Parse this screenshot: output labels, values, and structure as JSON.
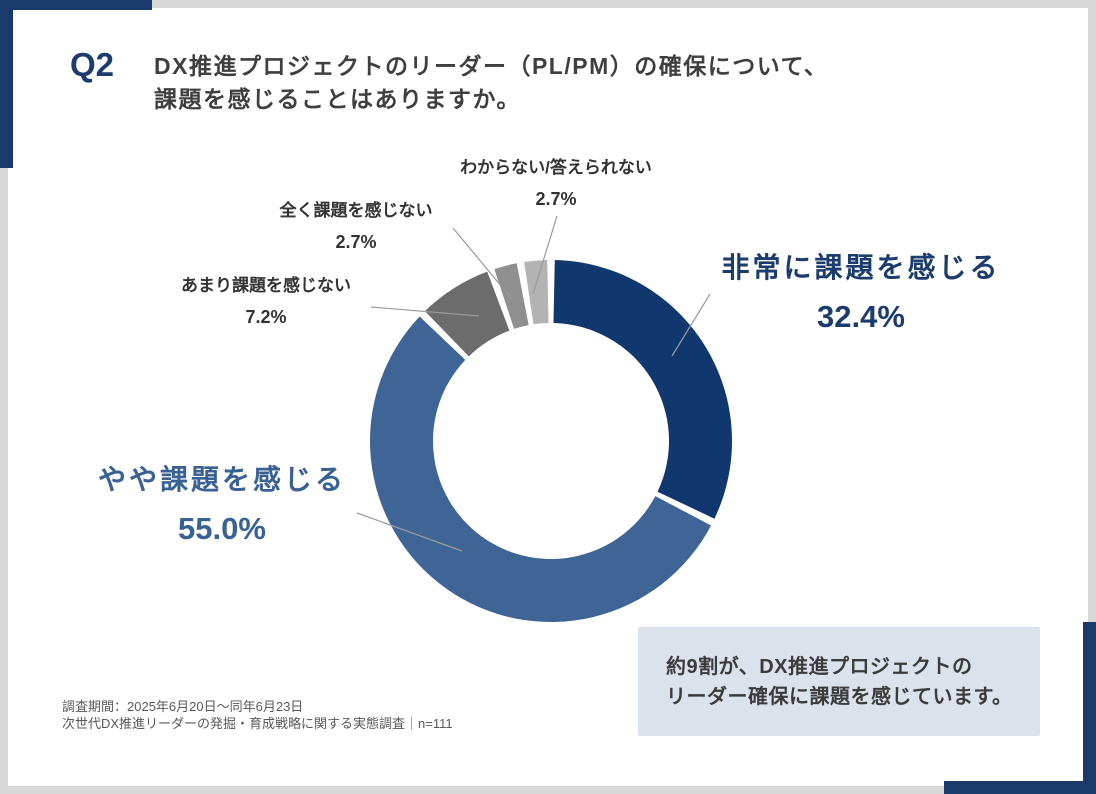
{
  "page": {
    "q_label": "Q2",
    "title_line1": "DX推進プロジェクトのリーダー（PL/PM）の確保について、",
    "title_line2": "課題を感じることはありますか。",
    "colors": {
      "accent_navy": "#1a3a6b",
      "navy_text": "#1b3c6d",
      "blue_text": "#3a6194",
      "frame_gray": "#d8d8d8",
      "annotation_bg": "#dbe2ec"
    }
  },
  "chart_data": {
    "type": "pie",
    "subtype": "donut",
    "title": "DX推進プロジェクトのリーダー（PL/PM）の確保について、課題を感じることはありますか。",
    "categories": [
      "非常に課題を感じる",
      "やや課題を感じる",
      "あまり課題を感じない",
      "全く課題を感じない",
      "わからない/答えられない"
    ],
    "values": [
      32.4,
      55.0,
      7.2,
      2.7,
      2.7
    ],
    "value_labels": [
      "32.4%",
      "55.0%",
      "7.2%",
      "2.7%",
      "2.7%"
    ],
    "colors": [
      "#10386e",
      "#3e6596",
      "#6c6c6c",
      "#8f8f8f",
      "#b3b3b3"
    ],
    "unit": "%",
    "start_angle_deg": 0,
    "direction": "clockwise",
    "inner_radius_ratio": 0.65,
    "legend": "none",
    "n": 111
  },
  "annotation": {
    "line1": "約9割が、DX推進プロジェクトの",
    "line2": "リーダー確保に課題を感じています。"
  },
  "source": {
    "line1": "調査期間：2025年6月20日～同年6月23日",
    "line2": "次世代DX推進リーダーの発掘・育成戦略に関する実態調査｜n=111"
  }
}
